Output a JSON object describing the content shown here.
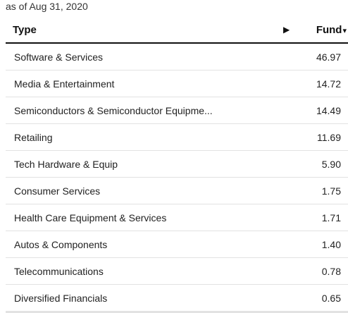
{
  "as_of": "as of Aug 31, 2020",
  "header": {
    "type_label": "Type",
    "arrow_icon": "▶",
    "fund_label": "Fund",
    "fund_caret": "▾"
  },
  "rows": [
    {
      "name": "Software & Services",
      "value": "46.97"
    },
    {
      "name": "Media & Entertainment",
      "value": "14.72"
    },
    {
      "name": "Semiconductors & Semiconductor Equipme...",
      "value": "14.49"
    },
    {
      "name": "Retailing",
      "value": "11.69"
    },
    {
      "name": "Tech Hardware & Equip",
      "value": "5.90"
    },
    {
      "name": "Consumer Services",
      "value": "1.75"
    },
    {
      "name": "Health Care Equipment & Services",
      "value": "1.71"
    },
    {
      "name": "Autos & Components",
      "value": "1.40"
    },
    {
      "name": "Telecommunications",
      "value": "0.78"
    },
    {
      "name": "Diversified Financials",
      "value": "0.65"
    }
  ]
}
